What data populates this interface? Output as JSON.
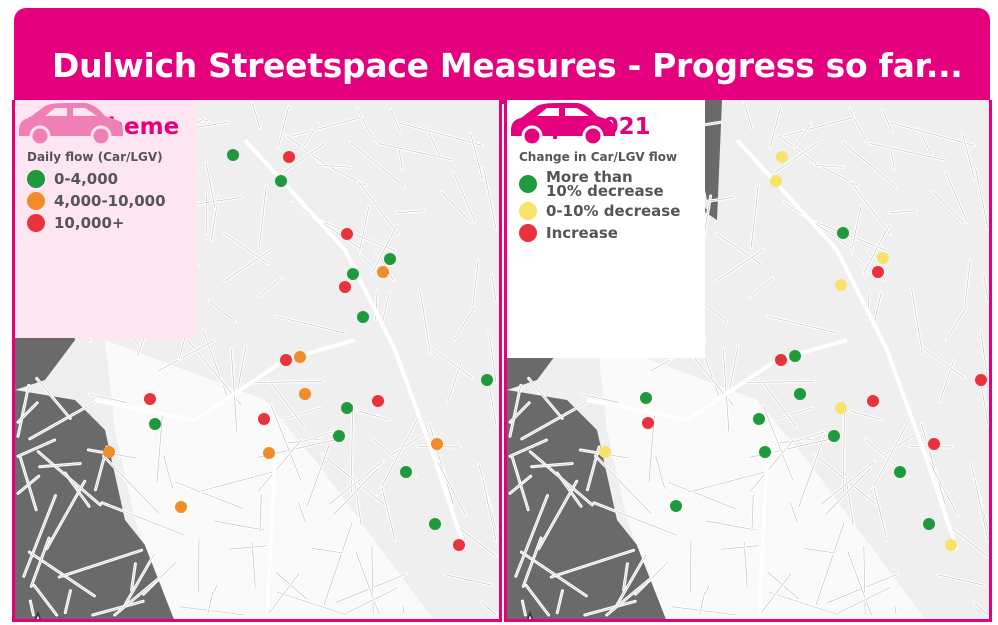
{
  "title": "Dulwich Streetspace Measures - Progress so far...",
  "colors": {
    "brand": "#e5007e",
    "green": "#1e9a3c",
    "orange": "#f28c28",
    "red": "#e8323c",
    "yellow": "#f7e36a",
    "car_pre": "#ef7fb4",
    "car_post": "#e5007e"
  },
  "pre": {
    "title": "Pre-scheme",
    "icon": "car-icon",
    "legend_heading": "Daily flow (Car/LGV)",
    "legend": [
      {
        "key": "green",
        "label": "0-4,000"
      },
      {
        "key": "orange",
        "label": "4,000-10,000"
      },
      {
        "key": "red",
        "label": "10,000+"
      }
    ],
    "markers": [
      "green",
      "green",
      "green",
      "green",
      "green",
      "green",
      "green",
      "green",
      "green",
      "green",
      "green",
      "orange",
      "orange",
      "orange",
      "orange",
      "orange",
      "orange",
      "orange",
      "red",
      "red",
      "red",
      "red",
      "red",
      "red",
      "red",
      "red"
    ]
  },
  "post": {
    "title": "Sept 2021",
    "icon": "car-icon",
    "legend_heading": "Change in Car/LGV flow",
    "legend": [
      {
        "key": "green",
        "label": "More than 10% decrease"
      },
      {
        "key": "yellow",
        "label": "0-10% decrease"
      },
      {
        "key": "red",
        "label": "Increase"
      }
    ],
    "markers": [
      "yellow",
      "yellow",
      "yellow",
      "yellow",
      "yellow",
      "yellow",
      "yellow",
      "green",
      "green",
      "green",
      "green",
      "green",
      "green",
      "green",
      "green",
      "green",
      "green",
      "red",
      "red",
      "red",
      "red",
      "red",
      "red"
    ]
  }
}
